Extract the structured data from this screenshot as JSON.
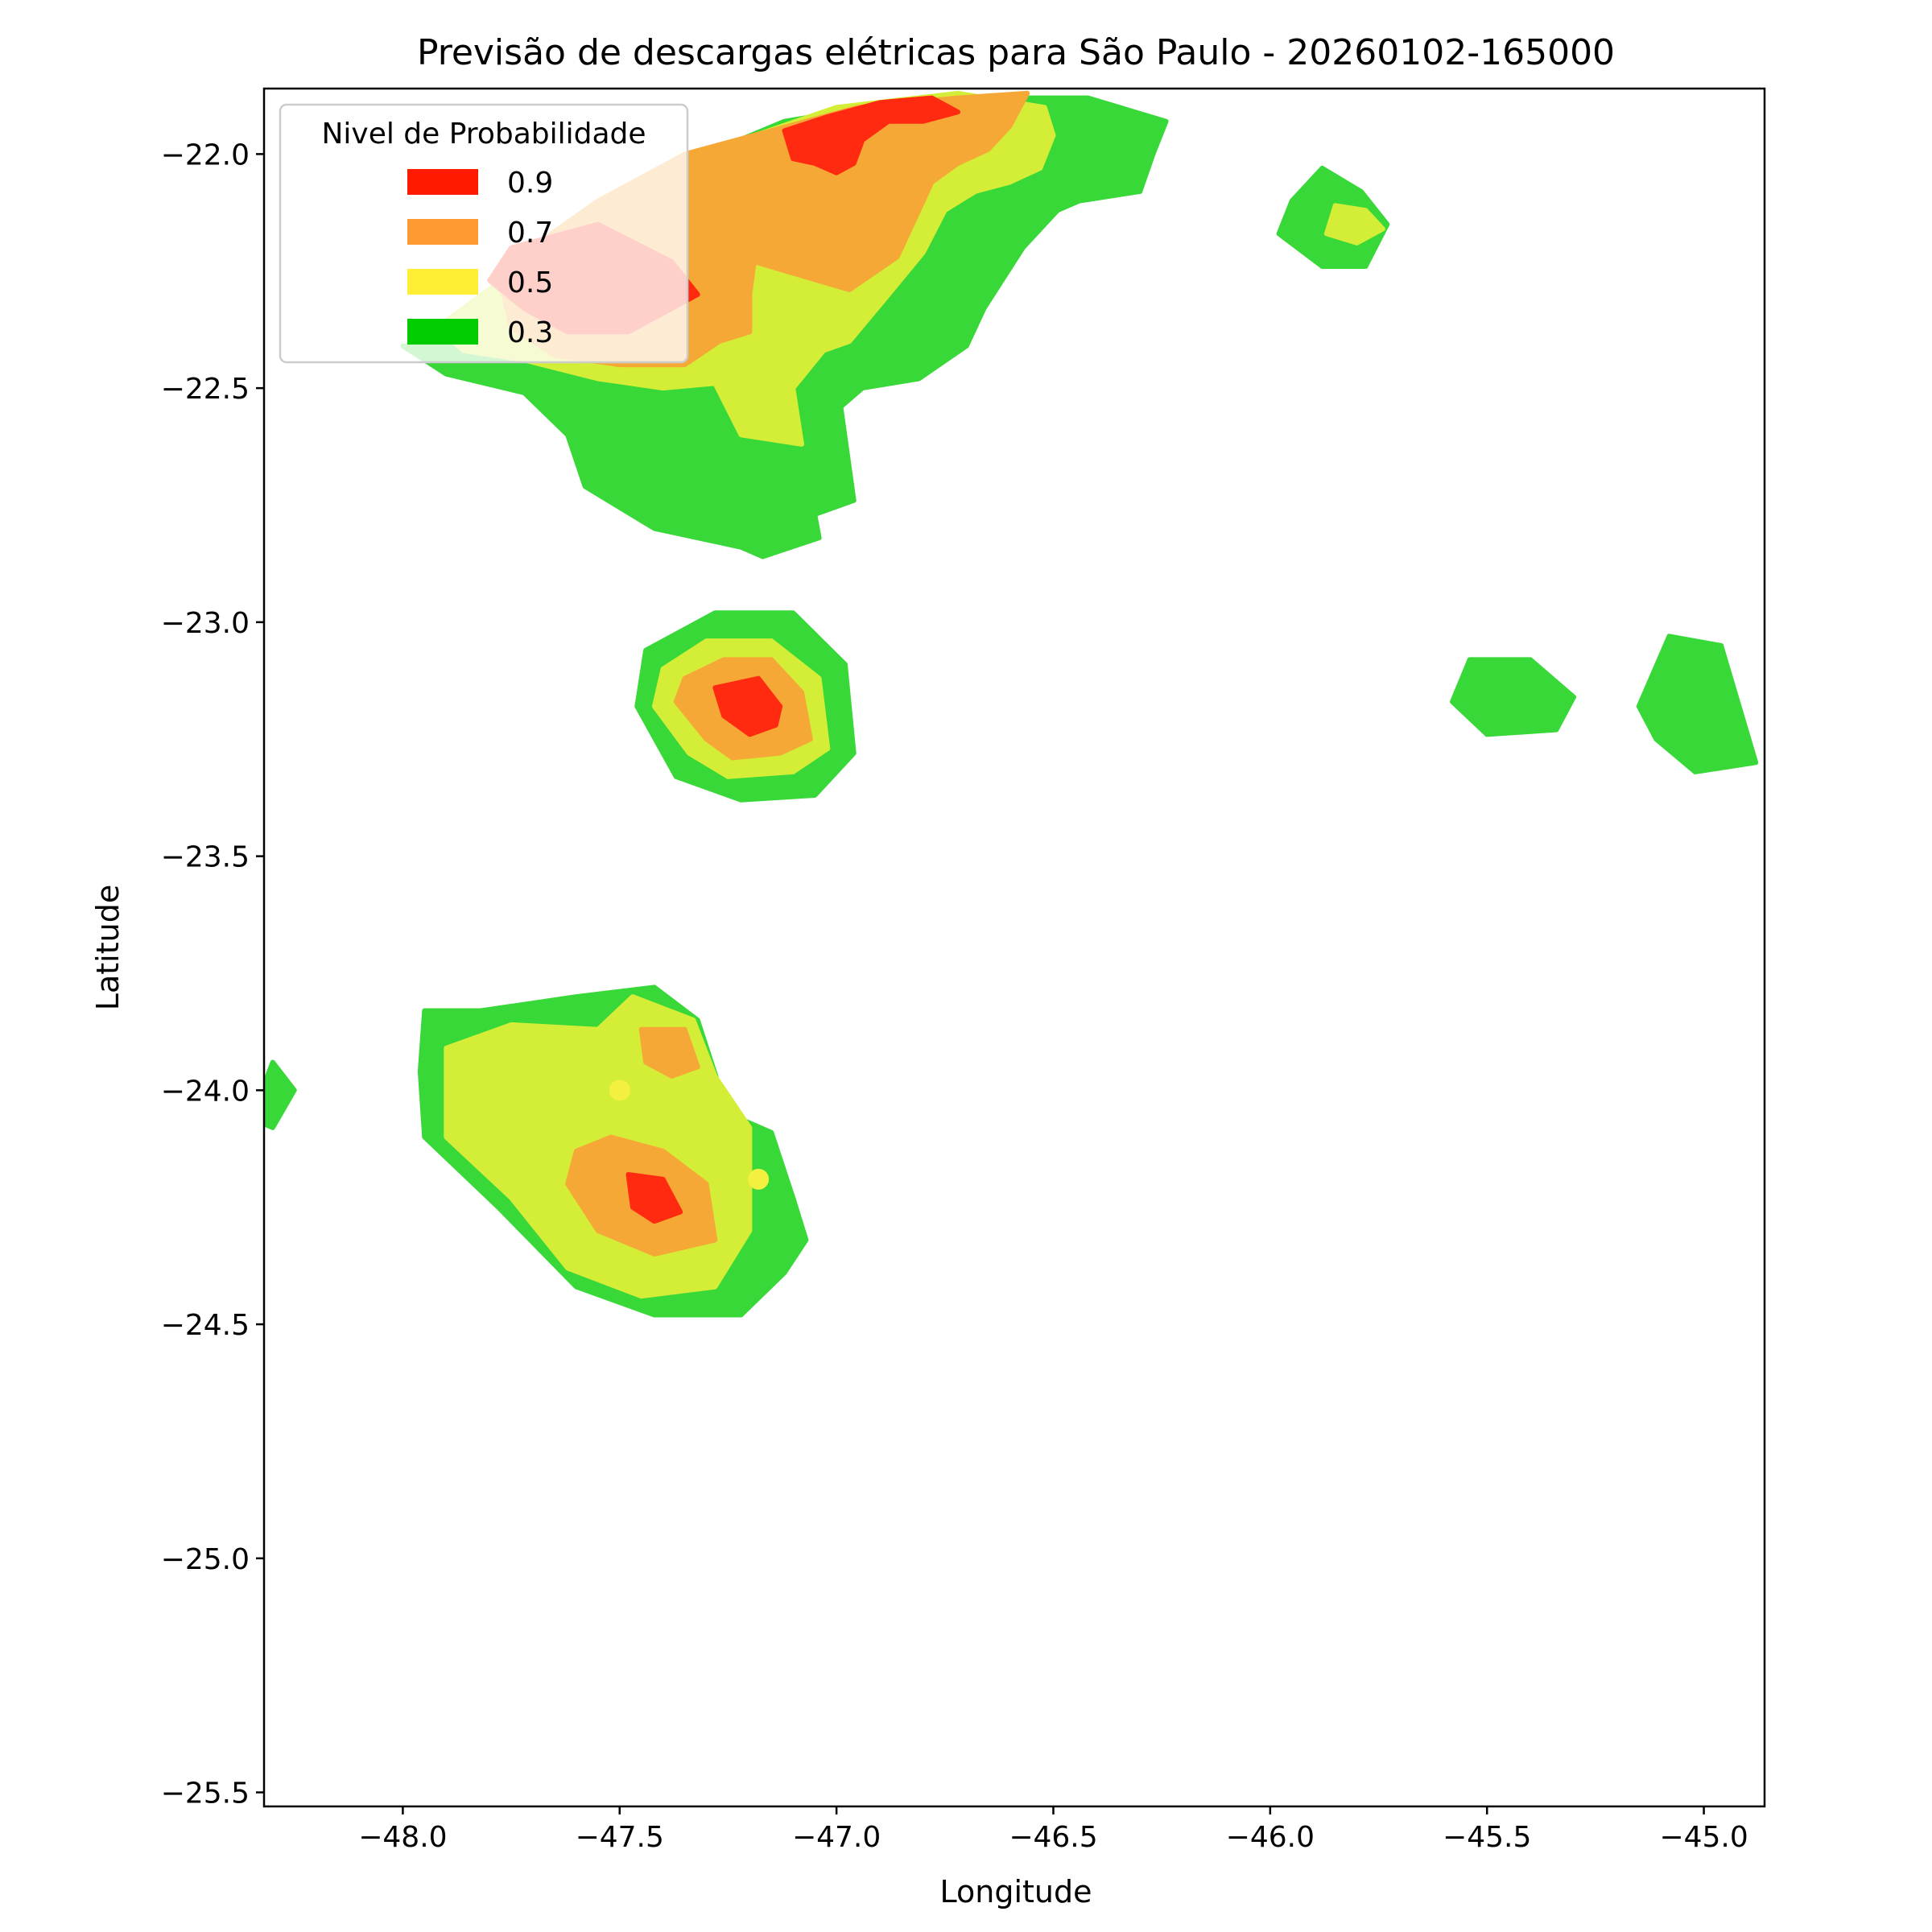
{
  "chart_data": {
    "type": "contour",
    "title": "Previsão de descargas elétricas para São Paulo - 20260102-165000",
    "xlabel": "Longitude",
    "ylabel": "Latitude",
    "xlim": [
      -48.32,
      -44.86
    ],
    "ylim": [
      -25.53,
      -21.86
    ],
    "x_ticks": [
      -48.0,
      -47.5,
      -47.0,
      -46.5,
      -46.0,
      -45.5,
      -45.0
    ],
    "x_tick_labels": [
      "−48.0",
      "−47.5",
      "−47.0",
      "−46.5",
      "−46.0",
      "−45.5",
      "−45.0"
    ],
    "y_ticks": [
      -22.0,
      -22.5,
      -23.0,
      -23.5,
      -24.0,
      -24.5,
      -25.0,
      -25.5
    ],
    "y_tick_labels": [
      "−22.0",
      "−22.5",
      "−23.0",
      "−23.5",
      "−24.0",
      "−24.5",
      "−25.0",
      "−25.5"
    ],
    "grid": false,
    "legend": {
      "title": "Nivel de Probabilidade",
      "placement": "upper-left",
      "entries": [
        {
          "label": "0.9",
          "color": "#ff1a00"
        },
        {
          "label": "0.7",
          "color": "#ff9a33"
        },
        {
          "label": "0.5",
          "color": "#ffee33"
        },
        {
          "label": "0.3",
          "color": "#00cc00"
        }
      ]
    },
    "fill_colors": {
      "0.3": "#38d838",
      "0.5": "#d4ee38",
      "0.7": "#f6a836",
      "0.9": "#ff2a10"
    },
    "regions": [
      {
        "level": "0.3",
        "points": [
          [
            -48.0,
            -22.41
          ],
          [
            -47.82,
            -22.41
          ],
          [
            -47.62,
            -22.19
          ],
          [
            -47.38,
            -22.03
          ],
          [
            -47.12,
            -21.93
          ],
          [
            -46.8,
            -21.88
          ],
          [
            -46.42,
            -21.88
          ],
          [
            -46.24,
            -21.93
          ],
          [
            -46.27,
            -22.0
          ],
          [
            -46.3,
            -22.08
          ],
          [
            -46.44,
            -22.1
          ],
          [
            -46.49,
            -22.12
          ],
          [
            -46.57,
            -22.2
          ],
          [
            -46.66,
            -22.33
          ],
          [
            -46.7,
            -22.41
          ],
          [
            -46.81,
            -22.48
          ],
          [
            -46.94,
            -22.5
          ],
          [
            -46.99,
            -22.54
          ],
          [
            -46.96,
            -22.74
          ],
          [
            -47.05,
            -22.77
          ],
          [
            -47.04,
            -22.82
          ],
          [
            -47.17,
            -22.86
          ],
          [
            -47.22,
            -22.84
          ],
          [
            -47.42,
            -22.8
          ],
          [
            -47.58,
            -22.71
          ],
          [
            -47.62,
            -22.6
          ],
          [
            -47.72,
            -22.51
          ],
          [
            -47.9,
            -22.47
          ]
        ]
      },
      {
        "level": "0.5",
        "points": [
          [
            -47.92,
            -22.37
          ],
          [
            -47.7,
            -22.22
          ],
          [
            -47.5,
            -22.08
          ],
          [
            -47.25,
            -21.98
          ],
          [
            -47.0,
            -21.9
          ],
          [
            -46.72,
            -21.87
          ],
          [
            -46.52,
            -21.9
          ],
          [
            -46.5,
            -21.96
          ],
          [
            -46.53,
            -22.03
          ],
          [
            -46.6,
            -22.06
          ],
          [
            -46.68,
            -22.08
          ],
          [
            -46.75,
            -22.12
          ],
          [
            -46.8,
            -22.21
          ],
          [
            -46.88,
            -22.3
          ],
          [
            -46.97,
            -22.4
          ],
          [
            -47.03,
            -22.42
          ],
          [
            -47.1,
            -22.5
          ],
          [
            -47.08,
            -22.62
          ],
          [
            -47.22,
            -22.6
          ],
          [
            -47.28,
            -22.49
          ],
          [
            -47.4,
            -22.5
          ],
          [
            -47.55,
            -22.48
          ],
          [
            -47.72,
            -22.44
          ],
          [
            -47.86,
            -22.42
          ]
        ]
      },
      {
        "level": "0.7",
        "points": [
          [
            -47.78,
            -22.25
          ],
          [
            -47.55,
            -22.1
          ],
          [
            -47.35,
            -22.0
          ],
          [
            -47.15,
            -21.95
          ],
          [
            -46.95,
            -21.9
          ],
          [
            -46.72,
            -21.88
          ],
          [
            -46.56,
            -21.87
          ],
          [
            -46.6,
            -21.94
          ],
          [
            -46.65,
            -21.99
          ],
          [
            -46.72,
            -22.02
          ],
          [
            -46.78,
            -22.06
          ],
          [
            -46.82,
            -22.14
          ],
          [
            -46.86,
            -22.22
          ],
          [
            -46.97,
            -22.29
          ],
          [
            -47.08,
            -22.26
          ],
          [
            -47.19,
            -22.23
          ],
          [
            -47.2,
            -22.3
          ],
          [
            -47.2,
            -22.38
          ],
          [
            -47.27,
            -22.4
          ],
          [
            -47.35,
            -22.45
          ],
          [
            -47.5,
            -22.45
          ],
          [
            -47.65,
            -22.43
          ],
          [
            -47.75,
            -22.37
          ]
        ]
      },
      {
        "level": "0.9",
        "points": [
          [
            -47.12,
            -21.95
          ],
          [
            -47.02,
            -21.92
          ],
          [
            -46.9,
            -21.89
          ],
          [
            -46.78,
            -21.88
          ],
          [
            -46.72,
            -21.91
          ],
          [
            -46.8,
            -21.93
          ],
          [
            -46.88,
            -21.93
          ],
          [
            -46.94,
            -21.97
          ],
          [
            -46.96,
            -22.02
          ],
          [
            -47.0,
            -22.04
          ],
          [
            -47.05,
            -22.02
          ],
          [
            -47.1,
            -22.01
          ]
        ]
      },
      {
        "level": "0.9",
        "points": [
          [
            -47.75,
            -22.2
          ],
          [
            -47.55,
            -22.15
          ],
          [
            -47.38,
            -22.23
          ],
          [
            -47.32,
            -22.3
          ],
          [
            -47.38,
            -22.33
          ],
          [
            -47.48,
            -22.38
          ],
          [
            -47.62,
            -22.38
          ],
          [
            -47.72,
            -22.33
          ],
          [
            -47.8,
            -22.27
          ]
        ]
      },
      {
        "level": "0.3",
        "points": [
          [
            -47.44,
            -23.06
          ],
          [
            -47.28,
            -22.98
          ],
          [
            -47.1,
            -22.98
          ],
          [
            -46.98,
            -23.09
          ],
          [
            -46.96,
            -23.28
          ],
          [
            -47.05,
            -23.37
          ],
          [
            -47.22,
            -23.38
          ],
          [
            -47.37,
            -23.33
          ],
          [
            -47.46,
            -23.18
          ]
        ]
      },
      {
        "level": "0.5",
        "points": [
          [
            -47.4,
            -23.1
          ],
          [
            -47.3,
            -23.04
          ],
          [
            -47.15,
            -23.04
          ],
          [
            -47.04,
            -23.12
          ],
          [
            -47.02,
            -23.27
          ],
          [
            -47.1,
            -23.32
          ],
          [
            -47.25,
            -23.33
          ],
          [
            -47.34,
            -23.28
          ],
          [
            -47.42,
            -23.18
          ]
        ]
      },
      {
        "level": "0.7",
        "points": [
          [
            -47.35,
            -23.12
          ],
          [
            -47.26,
            -23.08
          ],
          [
            -47.15,
            -23.08
          ],
          [
            -47.08,
            -23.15
          ],
          [
            -47.06,
            -23.25
          ],
          [
            -47.13,
            -23.28
          ],
          [
            -47.24,
            -23.29
          ],
          [
            -47.3,
            -23.25
          ],
          [
            -47.37,
            -23.17
          ]
        ]
      },
      {
        "level": "0.9",
        "points": [
          [
            -47.28,
            -23.14
          ],
          [
            -47.18,
            -23.12
          ],
          [
            -47.13,
            -23.18
          ],
          [
            -47.14,
            -23.22
          ],
          [
            -47.2,
            -23.24
          ],
          [
            -47.26,
            -23.2
          ]
        ]
      },
      {
        "level": "0.3",
        "points": [
          [
            -47.95,
            -23.83
          ],
          [
            -47.82,
            -23.83
          ],
          [
            -47.6,
            -23.8
          ],
          [
            -47.42,
            -23.78
          ],
          [
            -47.32,
            -23.85
          ],
          [
            -47.25,
            -24.05
          ],
          [
            -47.15,
            -24.09
          ],
          [
            -47.1,
            -24.23
          ],
          [
            -47.07,
            -24.32
          ],
          [
            -47.12,
            -24.39
          ],
          [
            -47.22,
            -24.48
          ],
          [
            -47.42,
            -24.48
          ],
          [
            -47.6,
            -24.42
          ],
          [
            -47.78,
            -24.25
          ],
          [
            -47.95,
            -24.1
          ],
          [
            -47.96,
            -23.96
          ]
        ]
      },
      {
        "level": "0.5",
        "points": [
          [
            -47.9,
            -23.91
          ],
          [
            -47.75,
            -23.86
          ],
          [
            -47.55,
            -23.87
          ],
          [
            -47.47,
            -23.8
          ],
          [
            -47.33,
            -23.85
          ],
          [
            -47.28,
            -23.97
          ],
          [
            -47.2,
            -24.08
          ],
          [
            -47.2,
            -24.3
          ],
          [
            -47.28,
            -24.42
          ],
          [
            -47.45,
            -24.44
          ],
          [
            -47.62,
            -24.38
          ],
          [
            -47.75,
            -24.23
          ],
          [
            -47.9,
            -24.1
          ]
        ]
      },
      {
        "level": "0.7",
        "points": [
          [
            -47.52,
            -24.1
          ],
          [
            -47.4,
            -24.13
          ],
          [
            -47.3,
            -24.2
          ],
          [
            -47.28,
            -24.32
          ],
          [
            -47.42,
            -24.35
          ],
          [
            -47.55,
            -24.3
          ],
          [
            -47.62,
            -24.2
          ],
          [
            -47.6,
            -24.13
          ]
        ]
      },
      {
        "level": "0.7",
        "points": [
          [
            -47.45,
            -23.87
          ],
          [
            -47.35,
            -23.87
          ],
          [
            -47.32,
            -23.95
          ],
          [
            -47.38,
            -23.97
          ],
          [
            -47.44,
            -23.94
          ]
        ]
      },
      {
        "level": "0.9",
        "points": [
          [
            -47.48,
            -24.18
          ],
          [
            -47.4,
            -24.19
          ],
          [
            -47.36,
            -24.26
          ],
          [
            -47.42,
            -24.28
          ],
          [
            -47.47,
            -24.25
          ]
        ]
      },
      {
        "level": "0.3",
        "points": [
          [
            -48.3,
            -23.94
          ],
          [
            -48.25,
            -24.0
          ],
          [
            -48.3,
            -24.08
          ],
          [
            -48.35,
            -24.06
          ]
        ]
      },
      {
        "level": "0.3",
        "points": [
          [
            -45.88,
            -22.03
          ],
          [
            -45.79,
            -22.08
          ],
          [
            -45.73,
            -22.15
          ],
          [
            -45.78,
            -22.24
          ],
          [
            -45.88,
            -22.24
          ],
          [
            -45.98,
            -22.17
          ],
          [
            -45.95,
            -22.1
          ]
        ]
      },
      {
        "level": "0.5",
        "points": [
          [
            -45.85,
            -22.11
          ],
          [
            -45.78,
            -22.12
          ],
          [
            -45.74,
            -22.16
          ],
          [
            -45.8,
            -22.19
          ],
          [
            -45.87,
            -22.17
          ]
        ]
      },
      {
        "level": "0.3",
        "points": [
          [
            -45.54,
            -23.08
          ],
          [
            -45.4,
            -23.08
          ],
          [
            -45.3,
            -23.16
          ],
          [
            -45.34,
            -23.23
          ],
          [
            -45.5,
            -23.24
          ],
          [
            -45.58,
            -23.17
          ]
        ]
      },
      {
        "level": "0.3",
        "points": [
          [
            -45.08,
            -23.03
          ],
          [
            -44.96,
            -23.05
          ],
          [
            -44.88,
            -23.3
          ],
          [
            -45.02,
            -23.32
          ],
          [
            -45.11,
            -23.25
          ],
          [
            -45.15,
            -23.18
          ]
        ]
      }
    ],
    "points": [
      {
        "x": -47.5,
        "y": -24.0,
        "level": "0.5"
      },
      {
        "x": -47.18,
        "y": -24.19,
        "level": "0.5"
      }
    ]
  }
}
